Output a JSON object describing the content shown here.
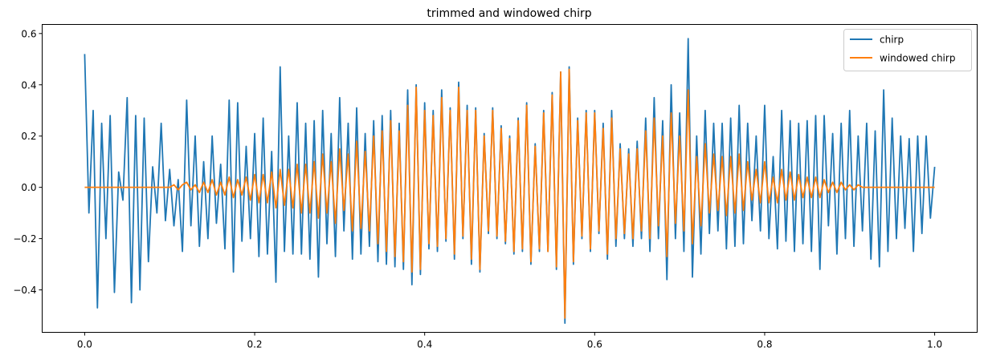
{
  "chart_data": {
    "type": "line",
    "title": "trimmed and windowed chirp",
    "xlabel": "",
    "ylabel": "",
    "xlim": [
      -0.05,
      1.05
    ],
    "ylim": [
      -0.5656,
      0.6354
    ],
    "x_ticks": [
      0.0,
      0.2,
      0.4,
      0.6,
      0.8,
      1.0
    ],
    "x_tick_labels": [
      "0.0",
      "0.2",
      "0.4",
      "0.6",
      "0.8",
      "1.0"
    ],
    "y_ticks": [
      -0.4,
      -0.2,
      0.0,
      0.2,
      0.4,
      0.6
    ],
    "y_tick_labels": [
      "−0.4",
      "−0.2",
      "0.0",
      "0.2",
      "0.4",
      "0.6"
    ],
    "grid": false,
    "legend_position": "top-right",
    "series": [
      {
        "name": "chirp",
        "color": "#1f77b4",
        "x": [
          0.0,
          0.005,
          0.01,
          0.015,
          0.02,
          0.025,
          0.03,
          0.035,
          0.04,
          0.045,
          0.05,
          0.055,
          0.06,
          0.065,
          0.07,
          0.075,
          0.08,
          0.085,
          0.09,
          0.095,
          0.1,
          0.105,
          0.11,
          0.115,
          0.12,
          0.125,
          0.13,
          0.135,
          0.14,
          0.145,
          0.15,
          0.155,
          0.16,
          0.165,
          0.17,
          0.175,
          0.18,
          0.185,
          0.19,
          0.195,
          0.2,
          0.205,
          0.21,
          0.215,
          0.22,
          0.225,
          0.23,
          0.235,
          0.24,
          0.245,
          0.25,
          0.255,
          0.26,
          0.265,
          0.27,
          0.275,
          0.28,
          0.285,
          0.29,
          0.295,
          0.3,
          0.305,
          0.31,
          0.315,
          0.32,
          0.325,
          0.33,
          0.335,
          0.34,
          0.345,
          0.35,
          0.355,
          0.36,
          0.365,
          0.37,
          0.375,
          0.38,
          0.385,
          0.39,
          0.395,
          0.4,
          0.405,
          0.41,
          0.415,
          0.42,
          0.425,
          0.43,
          0.435,
          0.44,
          0.445,
          0.45,
          0.455,
          0.46,
          0.465,
          0.47,
          0.475,
          0.48,
          0.485,
          0.49,
          0.495,
          0.5,
          0.505,
          0.51,
          0.515,
          0.52,
          0.525,
          0.53,
          0.535,
          0.54,
          0.545,
          0.55,
          0.555,
          0.56,
          0.565,
          0.57,
          0.575,
          0.58,
          0.585,
          0.59,
          0.595,
          0.6,
          0.605,
          0.61,
          0.615,
          0.62,
          0.625,
          0.63,
          0.635,
          0.64,
          0.645,
          0.65,
          0.655,
          0.66,
          0.665,
          0.67,
          0.675,
          0.68,
          0.685,
          0.69,
          0.695,
          0.7,
          0.705,
          0.71,
          0.715,
          0.72,
          0.725,
          0.73,
          0.735,
          0.74,
          0.745,
          0.75,
          0.755,
          0.76,
          0.765,
          0.77,
          0.775,
          0.78,
          0.785,
          0.79,
          0.795,
          0.8,
          0.805,
          0.81,
          0.815,
          0.82,
          0.825,
          0.83,
          0.835,
          0.84,
          0.845,
          0.85,
          0.855,
          0.86,
          0.865,
          0.87,
          0.875,
          0.88,
          0.885,
          0.89,
          0.895,
          0.9,
          0.905,
          0.91,
          0.915,
          0.92,
          0.925,
          0.93,
          0.935,
          0.94,
          0.945,
          0.95,
          0.955,
          0.96,
          0.965,
          0.97,
          0.975,
          0.98,
          0.985,
          0.99,
          0.995,
          1.0
        ],
        "y": [
          0.52,
          -0.1,
          0.3,
          -0.47,
          0.25,
          -0.2,
          0.28,
          -0.41,
          0.06,
          -0.05,
          0.35,
          -0.45,
          0.28,
          -0.4,
          0.27,
          -0.29,
          0.08,
          -0.1,
          0.25,
          -0.13,
          0.07,
          -0.15,
          0.03,
          -0.25,
          0.34,
          -0.15,
          0.2,
          -0.23,
          0.1,
          -0.2,
          0.2,
          -0.14,
          0.09,
          -0.24,
          0.34,
          -0.33,
          0.33,
          -0.21,
          0.16,
          -0.2,
          0.21,
          -0.27,
          0.27,
          -0.26,
          0.14,
          -0.37,
          0.47,
          -0.25,
          0.2,
          -0.26,
          0.33,
          -0.26,
          0.25,
          -0.28,
          0.26,
          -0.35,
          0.3,
          -0.22,
          0.21,
          -0.27,
          0.35,
          -0.17,
          0.25,
          -0.28,
          0.31,
          -0.26,
          0.21,
          -0.23,
          0.26,
          -0.29,
          0.28,
          -0.3,
          0.3,
          -0.31,
          0.25,
          -0.32,
          0.38,
          -0.38,
          0.4,
          -0.34,
          0.33,
          -0.24,
          0.3,
          -0.25,
          0.38,
          -0.21,
          0.31,
          -0.28,
          0.41,
          -0.2,
          0.32,
          -0.3,
          0.31,
          -0.33,
          0.21,
          -0.18,
          0.31,
          -0.2,
          0.24,
          -0.22,
          0.2,
          -0.26,
          0.27,
          -0.25,
          0.33,
          -0.3,
          0.17,
          -0.25,
          0.3,
          -0.25,
          0.37,
          -0.32,
          0.45,
          -0.53,
          0.47,
          -0.3,
          0.27,
          -0.2,
          0.3,
          -0.25,
          0.3,
          -0.18,
          0.25,
          -0.28,
          0.3,
          -0.23,
          0.17,
          -0.2,
          0.15,
          -0.23,
          0.18,
          -0.2,
          0.27,
          -0.25,
          0.35,
          -0.2,
          0.26,
          -0.36,
          0.4,
          -0.2,
          0.29,
          -0.25,
          0.58,
          -0.35,
          0.2,
          -0.26,
          0.3,
          -0.18,
          0.25,
          -0.17,
          0.25,
          -0.24,
          0.27,
          -0.23,
          0.32,
          -0.22,
          0.25,
          -0.13,
          0.2,
          -0.17,
          0.32,
          -0.2,
          0.12,
          -0.24,
          0.3,
          -0.21,
          0.26,
          -0.25,
          0.25,
          -0.22,
          0.26,
          -0.25,
          0.28,
          -0.32,
          0.28,
          -0.15,
          0.21,
          -0.26,
          0.25,
          -0.2,
          0.3,
          -0.23,
          0.2,
          -0.17,
          0.25,
          -0.28,
          0.22,
          -0.31,
          0.38,
          -0.25,
          0.27,
          -0.2,
          0.2,
          -0.16,
          0.19,
          -0.25,
          0.2,
          -0.18,
          0.2,
          -0.12,
          0.08
        ]
      },
      {
        "name": "windowed chirp",
        "color": "#ff7f0e",
        "x": [
          0.0,
          0.005,
          0.01,
          0.015,
          0.02,
          0.025,
          0.03,
          0.035,
          0.04,
          0.045,
          0.05,
          0.055,
          0.06,
          0.065,
          0.07,
          0.075,
          0.08,
          0.085,
          0.09,
          0.095,
          0.1,
          0.105,
          0.11,
          0.115,
          0.12,
          0.125,
          0.13,
          0.135,
          0.14,
          0.145,
          0.15,
          0.155,
          0.16,
          0.165,
          0.17,
          0.175,
          0.18,
          0.185,
          0.19,
          0.195,
          0.2,
          0.205,
          0.21,
          0.215,
          0.22,
          0.225,
          0.23,
          0.235,
          0.24,
          0.245,
          0.25,
          0.255,
          0.26,
          0.265,
          0.27,
          0.275,
          0.28,
          0.285,
          0.29,
          0.295,
          0.3,
          0.305,
          0.31,
          0.315,
          0.32,
          0.325,
          0.33,
          0.335,
          0.34,
          0.345,
          0.35,
          0.355,
          0.36,
          0.365,
          0.37,
          0.375,
          0.38,
          0.385,
          0.39,
          0.395,
          0.4,
          0.405,
          0.41,
          0.415,
          0.42,
          0.425,
          0.43,
          0.435,
          0.44,
          0.445,
          0.45,
          0.455,
          0.46,
          0.465,
          0.47,
          0.475,
          0.48,
          0.485,
          0.49,
          0.495,
          0.5,
          0.505,
          0.51,
          0.515,
          0.52,
          0.525,
          0.53,
          0.535,
          0.54,
          0.545,
          0.55,
          0.555,
          0.56,
          0.565,
          0.57,
          0.575,
          0.58,
          0.585,
          0.59,
          0.595,
          0.6,
          0.605,
          0.61,
          0.615,
          0.62,
          0.625,
          0.63,
          0.635,
          0.64,
          0.645,
          0.65,
          0.655,
          0.66,
          0.665,
          0.67,
          0.675,
          0.68,
          0.685,
          0.69,
          0.695,
          0.7,
          0.705,
          0.71,
          0.715,
          0.72,
          0.725,
          0.73,
          0.735,
          0.74,
          0.745,
          0.75,
          0.755,
          0.76,
          0.765,
          0.77,
          0.775,
          0.78,
          0.785,
          0.79,
          0.795,
          0.8,
          0.805,
          0.81,
          0.815,
          0.82,
          0.825,
          0.83,
          0.835,
          0.84,
          0.845,
          0.85,
          0.855,
          0.86,
          0.865,
          0.87,
          0.875,
          0.88,
          0.885,
          0.89,
          0.895,
          0.9,
          0.905,
          0.91,
          0.915,
          0.92,
          0.925,
          0.93,
          0.935,
          0.94,
          0.945,
          0.95,
          0.955,
          0.96,
          0.965,
          0.97,
          0.975,
          0.98,
          0.985,
          0.99,
          0.995,
          1.0
        ],
        "y": [
          0.0,
          0.0,
          0.0,
          0.0,
          0.0,
          0.0,
          0.0,
          0.0,
          0.0,
          0.0,
          0.0,
          0.0,
          0.0,
          0.0,
          0.0,
          0.0,
          0.0,
          0.0,
          0.0,
          0.0,
          0.0,
          0.01,
          -0.01,
          0.01,
          0.02,
          -0.01,
          0.01,
          -0.02,
          0.02,
          -0.02,
          0.03,
          -0.03,
          0.02,
          -0.03,
          0.04,
          -0.04,
          0.03,
          -0.03,
          0.04,
          -0.05,
          0.05,
          -0.06,
          0.05,
          -0.06,
          0.06,
          -0.08,
          0.07,
          -0.07,
          0.07,
          -0.08,
          0.09,
          -0.1,
          0.09,
          -0.1,
          0.1,
          -0.12,
          0.13,
          -0.1,
          0.1,
          -0.14,
          0.15,
          -0.09,
          0.13,
          -0.17,
          0.18,
          -0.16,
          0.14,
          -0.17,
          0.2,
          -0.22,
          0.22,
          -0.25,
          0.26,
          -0.27,
          0.22,
          -0.29,
          0.32,
          -0.33,
          0.39,
          -0.32,
          0.3,
          -0.22,
          0.28,
          -0.23,
          0.35,
          -0.2,
          0.3,
          -0.26,
          0.39,
          -0.19,
          0.3,
          -0.28,
          0.3,
          -0.32,
          0.2,
          -0.17,
          0.3,
          -0.19,
          0.23,
          -0.21,
          0.19,
          -0.25,
          0.26,
          -0.24,
          0.32,
          -0.29,
          0.16,
          -0.24,
          0.29,
          -0.25,
          0.36,
          -0.31,
          0.45,
          -0.51,
          0.46,
          -0.29,
          0.26,
          -0.19,
          0.29,
          -0.24,
          0.29,
          -0.17,
          0.23,
          -0.26,
          0.27,
          -0.2,
          0.15,
          -0.18,
          0.13,
          -0.2,
          0.15,
          -0.17,
          0.22,
          -0.2,
          0.27,
          -0.15,
          0.2,
          -0.27,
          0.29,
          -0.14,
          0.2,
          -0.17,
          0.38,
          -0.22,
          0.12,
          -0.15,
          0.17,
          -0.1,
          0.13,
          -0.09,
          0.12,
          -0.11,
          0.12,
          -0.1,
          0.13,
          -0.09,
          0.1,
          -0.05,
          0.07,
          -0.06,
          0.1,
          -0.06,
          0.04,
          -0.06,
          0.07,
          -0.05,
          0.06,
          -0.05,
          0.05,
          -0.04,
          0.04,
          -0.04,
          0.04,
          -0.04,
          0.03,
          -0.02,
          0.02,
          -0.02,
          0.02,
          -0.01,
          0.01,
          -0.01,
          0.01,
          0.0,
          0.0,
          0.0,
          0.0,
          0.0,
          0.0,
          0.0,
          0.0,
          0.0,
          0.0,
          0.0,
          0.0,
          0.0,
          0.0,
          0.0,
          0.0,
          0.0,
          0.0
        ]
      }
    ]
  }
}
